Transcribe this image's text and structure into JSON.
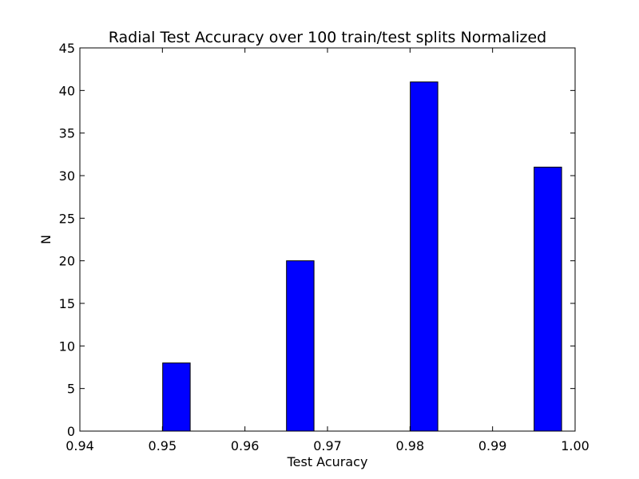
{
  "chart_data": {
    "type": "bar",
    "title": "Radial Test Accuracy over 100 train/test splits Normalized",
    "xlabel": "Test Acuracy",
    "ylabel": "N",
    "xlim": [
      0.94,
      1.0
    ],
    "ylim": [
      0,
      45
    ],
    "x_ticks": [
      "0.94",
      "0.95",
      "0.96",
      "0.97",
      "0.98",
      "0.99",
      "1.00"
    ],
    "y_ticks": [
      "0",
      "5",
      "10",
      "15",
      "20",
      "25",
      "30",
      "35",
      "40",
      "45"
    ],
    "bin_width": 0.00333,
    "bars": [
      {
        "x": 0.9517,
        "value": 8
      },
      {
        "x": 0.9667,
        "value": 20
      },
      {
        "x": 0.9817,
        "value": 41
      },
      {
        "x": 0.9967,
        "value": 31
      }
    ],
    "bar_color": "#0000ff",
    "edge_color": "#000000",
    "grid": false
  }
}
